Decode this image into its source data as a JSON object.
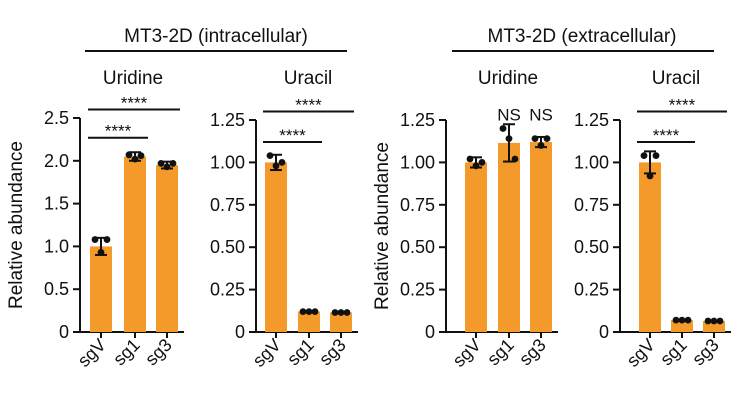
{
  "figure": {
    "bar_color": "#F39A2B",
    "axis_color": "#111111",
    "point_color": "#111111"
  },
  "group_titles": [
    "MT3-2D (intracellular)",
    "MT3-2D (extracellular)"
  ],
  "chart_data": [
    {
      "type": "bar",
      "title": "Uridine",
      "group": "MT3-2D (intracellular)",
      "ylabel": "Relative abundance",
      "categories": [
        "sgV",
        "sg1",
        "sg3"
      ],
      "values": [
        1.0,
        2.05,
        1.95
      ],
      "error": [
        0.1,
        0.05,
        0.04
      ],
      "points": [
        [
          1.08,
          0.93,
          1.08
        ],
        [
          2.07,
          2.02,
          2.06
        ],
        [
          1.97,
          1.93,
          1.97
        ]
      ],
      "ylim": [
        0,
        2.5
      ],
      "yticks": [
        "0",
        "0.5",
        "1.0",
        "1.5",
        "2.0",
        "2.5"
      ],
      "significance": [
        {
          "from": 0,
          "to": 2,
          "label": "****",
          "y": 2.6
        },
        {
          "from": 0,
          "to": 1,
          "label": "****",
          "y": 2.27
        }
      ]
    },
    {
      "type": "bar",
      "title": "Uracil",
      "group": "MT3-2D (intracellular)",
      "ylabel": "",
      "categories": [
        "sgV",
        "sg1",
        "sg3"
      ],
      "values": [
        1.0,
        0.12,
        0.115
      ],
      "error": [
        0.045,
        0.003,
        0.003
      ],
      "points": [
        [
          1.04,
          0.98,
          1.0
        ],
        [
          0.12,
          0.12,
          0.12
        ],
        [
          0.115,
          0.115,
          0.115
        ]
      ],
      "ylim": [
        0,
        1.25
      ],
      "yticks": [
        "0",
        "0.25",
        "0.50",
        "0.75",
        "1.00",
        "1.25"
      ],
      "significance": [
        {
          "from": 0,
          "to": 2,
          "label": "****",
          "y": 1.3
        },
        {
          "from": 0,
          "to": 1,
          "label": "****",
          "y": 1.12
        }
      ]
    },
    {
      "type": "bar",
      "title": "Uridine",
      "group": "MT3-2D (extracellular)",
      "ylabel": "Relative abundance",
      "categories": [
        "sgV",
        "sg1",
        "sg3"
      ],
      "values": [
        1.0,
        1.115,
        1.12
      ],
      "error": [
        0.03,
        0.11,
        0.03
      ],
      "points": [
        [
          1.02,
          0.98,
          1.0
        ],
        [
          1.2,
          1.14,
          1.02
        ],
        [
          1.14,
          1.1,
          1.14
        ]
      ],
      "ylim": [
        0,
        1.25
      ],
      "yticks": [
        "0",
        "0.25",
        "0.50",
        "0.75",
        "1.00",
        "1.25"
      ],
      "significance": [
        {
          "category": 1,
          "label": "NS",
          "y": 1.27
        },
        {
          "category": 2,
          "label": "NS",
          "y": 1.27
        }
      ]
    },
    {
      "type": "bar",
      "title": "Uracil",
      "group": "MT3-2D (extracellular)",
      "ylabel": "",
      "categories": [
        "sgV",
        "sg1",
        "sg3"
      ],
      "values": [
        1.0,
        0.07,
        0.065
      ],
      "error": [
        0.065,
        0.003,
        0.003
      ],
      "points": [
        [
          1.04,
          0.92,
          1.04
        ],
        [
          0.07,
          0.07,
          0.07
        ],
        [
          0.065,
          0.065,
          0.065
        ]
      ],
      "ylim": [
        0,
        1.25
      ],
      "yticks": [
        "0",
        "0.25",
        "0.50",
        "0.75",
        "1.00",
        "1.25"
      ],
      "significance": [
        {
          "from": 0,
          "to": 2,
          "label": "****",
          "y": 1.3
        },
        {
          "from": 0,
          "to": 1,
          "label": "****",
          "y": 1.12
        }
      ]
    }
  ]
}
